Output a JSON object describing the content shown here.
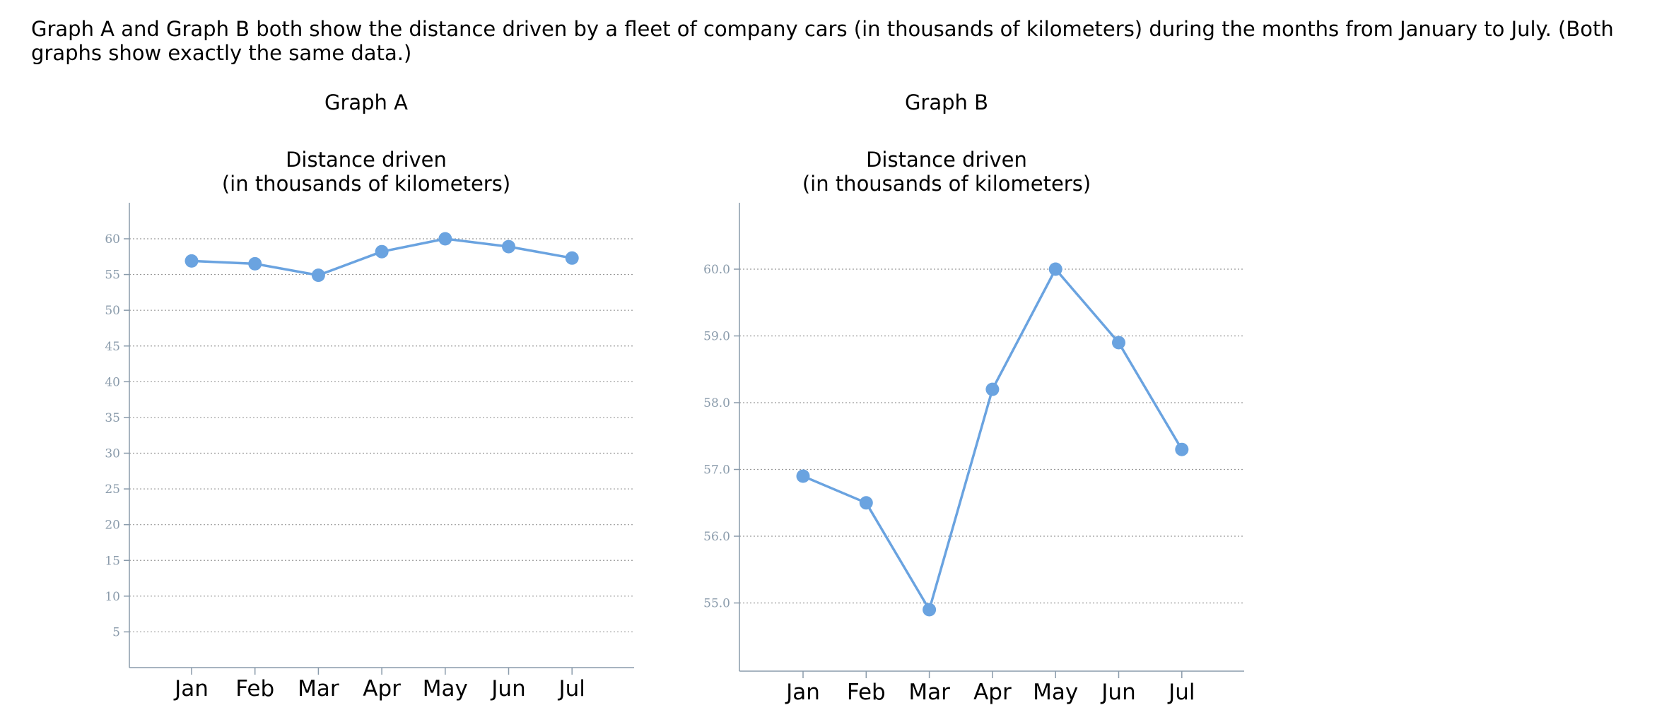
{
  "intro_text": "Graph A and Graph B both show the distance driven by a fleet of company cars (in thousands of kilometers) during the months from January to July. (Both graphs show exactly the same data.)",
  "colors": {
    "series": "#6aa3e0",
    "axis": "#8a9bab",
    "tick_label": "#8a9bab",
    "grid": "#9a9a9a"
  },
  "chart_data": [
    {
      "id": "A",
      "type": "line",
      "label": "Graph A",
      "title": [
        "Distance driven",
        "(in thousands of kilometers)"
      ],
      "categories": [
        "Jan",
        "Feb",
        "Mar",
        "Apr",
        "May",
        "Jun",
        "Jul"
      ],
      "values": [
        56.9,
        56.5,
        54.9,
        58.2,
        60.0,
        58.9,
        57.3
      ],
      "ylim": [
        0,
        65
      ],
      "yticks": [
        5,
        10,
        15,
        20,
        25,
        30,
        35,
        40,
        45,
        50,
        55,
        60
      ],
      "grid": true,
      "xlabel": "",
      "ylabel": ""
    },
    {
      "id": "B",
      "type": "line",
      "label": "Graph B",
      "title": [
        "Distance driven",
        "(in thousands of kilometers)"
      ],
      "categories": [
        "Jan",
        "Feb",
        "Mar",
        "Apr",
        "May",
        "Jun",
        "Jul"
      ],
      "values": [
        56.9,
        56.5,
        54.9,
        58.2,
        60.0,
        58.9,
        57.3
      ],
      "ylim": [
        54.0,
        61.0
      ],
      "yticks": [
        55,
        56,
        57,
        58,
        59,
        60
      ],
      "ytick_format": "0.0",
      "grid": true,
      "xlabel": "",
      "ylabel": ""
    }
  ]
}
